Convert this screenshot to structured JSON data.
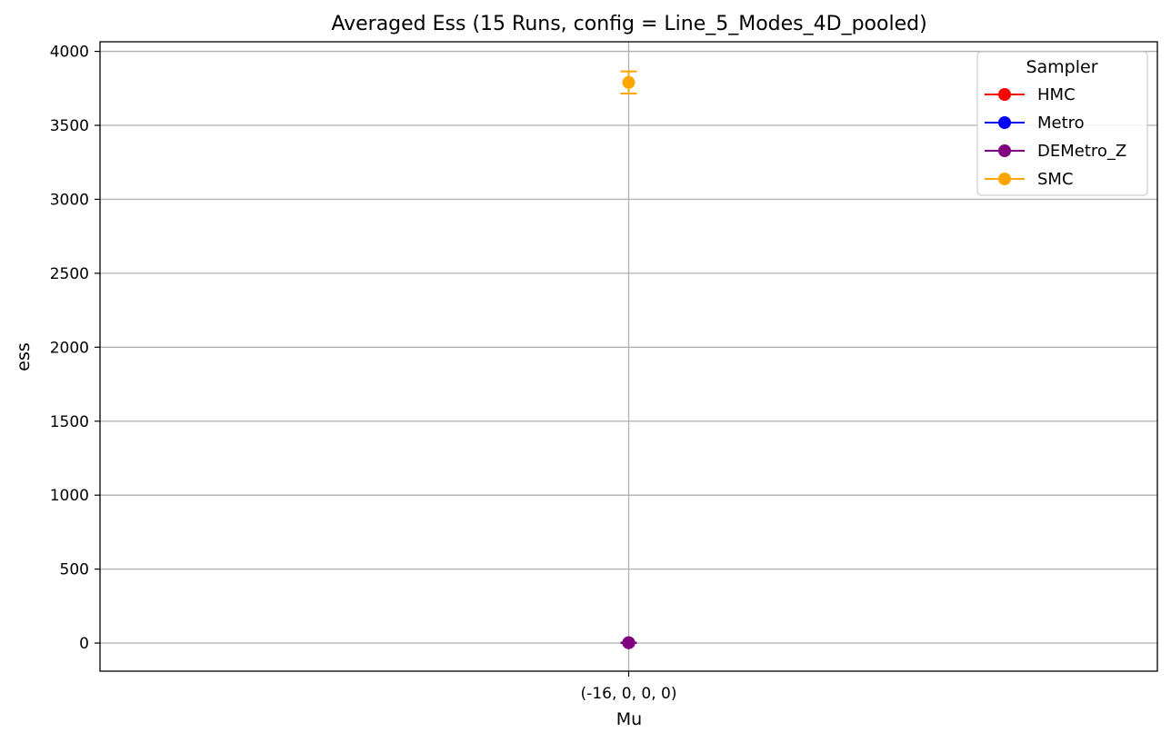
{
  "chart_data": {
    "type": "scatter",
    "title": "Averaged Ess (15 Runs, config = Line_5_Modes_4D_pooled)",
    "xlabel": "Mu",
    "ylabel": "ess",
    "categories": [
      "(-16, 0, 0, 0)"
    ],
    "ylim": [
      -190,
      4065
    ],
    "yticks": [
      0,
      500,
      1000,
      1500,
      2000,
      2500,
      3000,
      3500,
      4000
    ],
    "grid": true,
    "legend": {
      "title": "Sampler",
      "position": "top-right"
    },
    "series": [
      {
        "name": "HMC",
        "color": "#ff0000",
        "values": [
          2
        ],
        "error": [
          0
        ]
      },
      {
        "name": "Metro",
        "color": "#0000ff",
        "values": [
          2
        ],
        "error": [
          0
        ]
      },
      {
        "name": "DEMetro_Z",
        "color": "#800080",
        "values": [
          2
        ],
        "error": [
          0
        ]
      },
      {
        "name": "SMC",
        "color": "#ffa500",
        "values": [
          3790
        ],
        "error": [
          75
        ]
      }
    ]
  }
}
